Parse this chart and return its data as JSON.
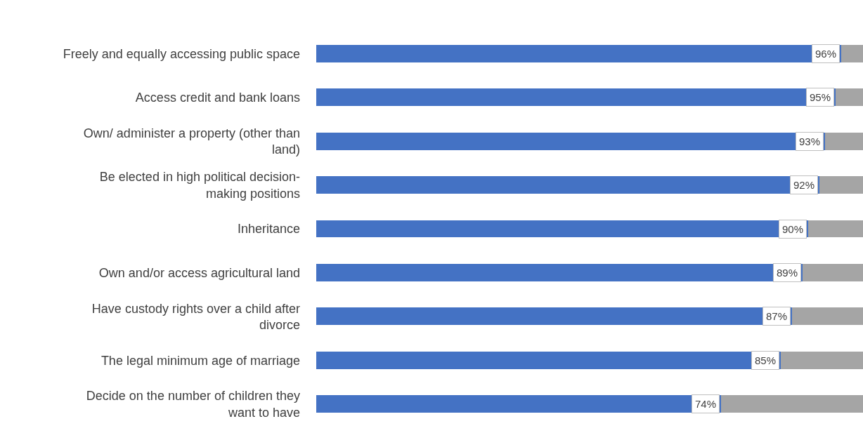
{
  "chart_data": {
    "type": "bar",
    "orientation": "horizontal",
    "stacked": true,
    "categories": [
      "Freely and equally accessing public space",
      "Access credit and bank loans",
      "Own/ administer a property (other than land)",
      "Be elected in high political decision-making positions",
      "Inheritance",
      "Own and/or access agricultural land",
      "Have custody rights over a child after divorce",
      "The legal minimum age of marriage",
      "Decide on the number of children they want to have"
    ],
    "series": [
      {
        "color": "#4472c4",
        "values": [
          96,
          95,
          93,
          92,
          90,
          89,
          87,
          85,
          74
        ],
        "value_labels": [
          "96%",
          "95%",
          "93%",
          "92%",
          "90%",
          "89%",
          "87%",
          "85%",
          "74%"
        ]
      },
      {
        "color": "#a5a5a5",
        "values": [
          4,
          5,
          7,
          8,
          10,
          11,
          13,
          15,
          26
        ]
      }
    ],
    "xlim": [
      0,
      100
    ],
    "tick_labels": "y"
  }
}
